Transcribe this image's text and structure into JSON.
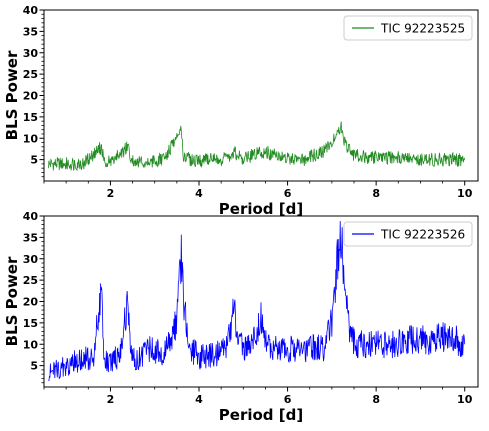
{
  "chart_data": [
    {
      "type": "line",
      "xlabel": "Period [d]",
      "ylabel": "BLS Power",
      "xlim": [
        0.5,
        10.3
      ],
      "ylim": [
        0,
        40
      ],
      "xticks": [
        2,
        4,
        6,
        8,
        10
      ],
      "yticks": [
        5,
        10,
        15,
        20,
        25,
        30,
        35,
        40
      ],
      "grid": false,
      "legend_position": "top-right",
      "series": [
        {
          "name": "TIC 92223525",
          "color": "#228B22",
          "x": [
            0.6,
            1.0,
            1.4,
            1.8,
            1.85,
            2.0,
            2.4,
            2.45,
            2.8,
            3.2,
            3.6,
            3.65,
            3.8,
            4.2,
            4.6,
            4.8,
            5.0,
            5.4,
            5.6,
            6.0,
            6.4,
            6.6,
            6.8,
            7.0,
            7.2,
            7.3,
            7.5,
            7.8,
            8.2,
            8.6,
            9.0,
            9.4,
            9.8,
            10.0
          ],
          "y": [
            4,
            4,
            4.2,
            8,
            4.5,
            4.5,
            8,
            5,
            4.5,
            5,
            12,
            6,
            5,
            5,
            5,
            6.5,
            5,
            7,
            6.5,
            5.5,
            5,
            6,
            7,
            9,
            13,
            8.5,
            6,
            5.5,
            5.5,
            5.5,
            5,
            5,
            5,
            5
          ]
        }
      ]
    },
    {
      "type": "line",
      "xlabel": "Period [d]",
      "ylabel": "BLS Power",
      "xlim": [
        0.5,
        10.3
      ],
      "ylim": [
        0,
        40
      ],
      "xticks": [
        2,
        4,
        6,
        8,
        10
      ],
      "yticks": [
        5,
        10,
        15,
        20,
        25,
        30,
        35,
        40
      ],
      "grid": false,
      "legend_position": "top-right",
      "series": [
        {
          "name": "TIC 92223526",
          "color": "#0000FF",
          "x": [
            0.6,
            0.8,
            1.0,
            1.2,
            1.4,
            1.6,
            1.8,
            1.85,
            2.0,
            2.2,
            2.4,
            2.45,
            2.6,
            2.9,
            3.2,
            3.5,
            3.6,
            3.65,
            3.8,
            4.0,
            4.4,
            4.6,
            4.8,
            4.9,
            5.0,
            5.2,
            5.4,
            5.6,
            6.0,
            6.4,
            6.8,
            7.0,
            7.1,
            7.2,
            7.3,
            7.4,
            7.6,
            8.0,
            8.4,
            8.8,
            9.2,
            9.6,
            10.0
          ],
          "y": [
            3,
            4,
            5,
            6,
            7,
            6,
            22,
            6,
            6,
            7,
            21,
            7,
            6,
            9,
            8,
            15,
            31,
            20,
            9,
            7,
            8,
            9,
            18,
            10,
            9,
            10,
            16,
            9,
            9,
            9,
            9,
            15,
            27,
            36,
            25,
            12,
            10,
            10,
            10,
            11,
            11,
            12,
            10
          ]
        }
      ]
    }
  ]
}
